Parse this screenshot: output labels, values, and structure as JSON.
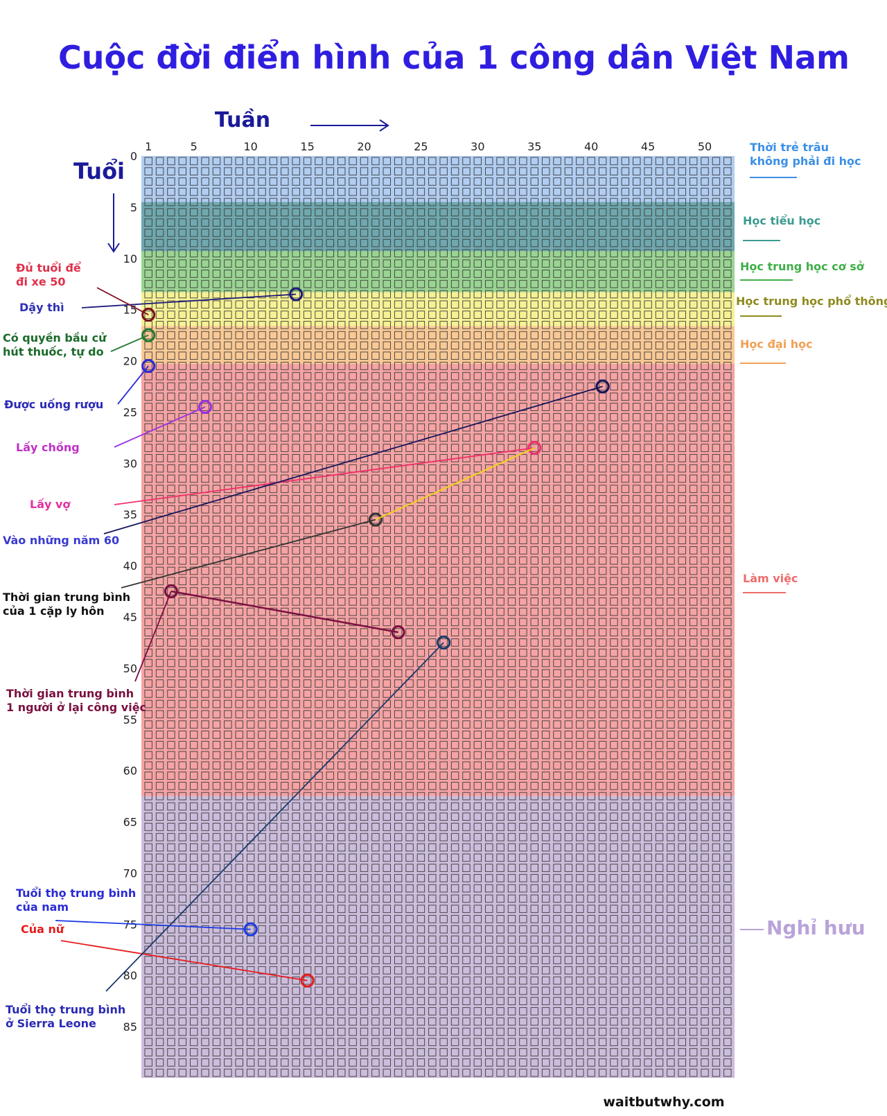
{
  "title": "Cuộc đời điển hình của 1 công dân Việt Nam",
  "x_axis_label": "Tuần",
  "y_axis_label": "Tuổi",
  "footer": "waitbutwhy.com",
  "chart_data": {
    "type": "table",
    "weeks_per_row": 52,
    "rows": 90,
    "x_ticks": [
      1,
      5,
      10,
      15,
      20,
      25,
      30,
      35,
      40,
      45,
      50
    ],
    "y_ticks": [
      0,
      5,
      10,
      15,
      20,
      25,
      30,
      35,
      40,
      45,
      50,
      55,
      60,
      65,
      70,
      75,
      80,
      85
    ],
    "phases": [
      {
        "name": "Thời trẻ trâu không phải đi học",
        "lines": [
          "Thời trẻ trâu",
          "không phải đi học"
        ],
        "from_age": 0,
        "to_age": 4.5,
        "color": "#a9c8ef",
        "label_color": "#3b8fe6"
      },
      {
        "name": "Học tiểu học",
        "lines": [
          "Học tiểu học"
        ],
        "from_age": 4.5,
        "to_age": 9.3,
        "color": "#5f9ea5",
        "label_color": "#3b9a8f"
      },
      {
        "name": "Học trung học cơ sở",
        "lines": [
          "Học trung học cơ sở"
        ],
        "from_age": 9.3,
        "to_age": 13.3,
        "color": "#8fcf86",
        "label_color": "#3fae47"
      },
      {
        "name": "Học trung học phổ thông",
        "lines": [
          "Học trung học phổ thông"
        ],
        "from_age": 13.3,
        "to_age": 16.6,
        "color": "#f5f08a",
        "label_color": "#8e8a1e"
      },
      {
        "name": "Học đại học",
        "lines": [
          "Học đại học"
        ],
        "from_age": 16.6,
        "to_age": 20.3,
        "color": "#f8c389",
        "label_color": "#f0a054"
      },
      {
        "name": "Làm việc",
        "lines": [
          "Làm việc"
        ],
        "from_age": 20.3,
        "to_age": 62.5,
        "color": "#f4999a",
        "label_color": "#ee6b6b"
      },
      {
        "name": "Nghỉ hưu",
        "lines": [
          "Nghỉ hưu"
        ],
        "from_age": 62.5,
        "to_age": 90,
        "color": "#c6b6d8",
        "label_color": "#b9a3d9"
      }
    ],
    "events": [
      {
        "label": [
          "Dậy thì"
        ],
        "week": 14,
        "age": 13.5,
        "color": "#1a1a7a",
        "label_color": "#2f2fb5"
      },
      {
        "label": [
          "Đủ tuổi để",
          "đi xe 50"
        ],
        "week": 1,
        "age": 15.5,
        "color": "#7a1020",
        "label_color": "#e0304a"
      },
      {
        "label": [
          "Có quyền bầu cử",
          "hút thuốc, tự do"
        ],
        "week": 1,
        "age": 17.5,
        "color": "#1f7a30",
        "label_color": "#1b6b2a"
      },
      {
        "label": [
          "Được uống rượu"
        ],
        "week": 1,
        "age": 20.5,
        "color": "#2a2ad6",
        "label_color": "#2a2ab5"
      },
      {
        "label": [
          "Lấy chồng"
        ],
        "week": 6,
        "age": 24.5,
        "color": "#9b30e0",
        "label_color": "#c030c8"
      },
      {
        "label": [
          "Lấy vợ"
        ],
        "week": 35,
        "age": 28.5,
        "color": "#f0306a",
        "label_color": "#e030a0"
      },
      {
        "label": [
          "Vào những năm 60"
        ],
        "week": 41,
        "age": 22.5,
        "color": "#14145a",
        "label_color": "#3a3ad0"
      },
      {
        "label": [
          "Thời gian trung bình",
          "của 1 cặp ly hôn"
        ],
        "week": 21,
        "age": 35.5,
        "color": "#333333",
        "label_color": "#111111"
      },
      {
        "label": [
          "Thời gian trung bình",
          "1 người ở lại công việc"
        ],
        "week": 3,
        "age": 42.5,
        "color": "#7a1040",
        "label_color": "#7a1040"
      },
      {
        "label": [
          "Tuổi thọ trung bình",
          "của nam"
        ],
        "week": 10,
        "age": 75.5,
        "color": "#1a3ae8",
        "label_color": "#2a2ad6"
      },
      {
        "label": [
          "Của nữ"
        ],
        "week": 15,
        "age": 80.5,
        "color": "#e81a1a",
        "label_color": "#e81a1a"
      },
      {
        "label": [
          "Tuổi thọ trung bình",
          "ở Sierra Leone"
        ],
        "week": 27,
        "age": 47.5,
        "color": "#1a3a6a",
        "label_color": "#2a2ab5"
      }
    ],
    "colors": {
      "title": "#2f1ee0",
      "axis_label": "#1a1a9a"
    }
  }
}
